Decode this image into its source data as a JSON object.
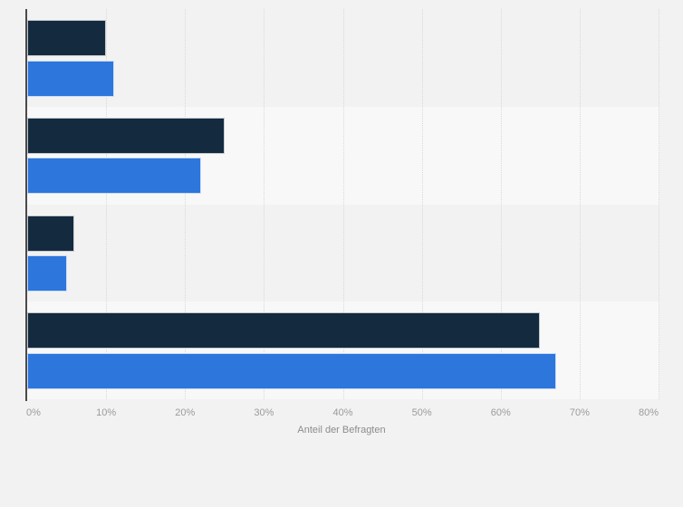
{
  "chart_data": {
    "type": "bar",
    "orientation": "horizontal",
    "title": "",
    "categories": [
      "group-1",
      "group-2",
      "group-3",
      "group-4"
    ],
    "category_labels_visible": false,
    "series": [
      {
        "name": "dark-navy",
        "color": "#142a3f",
        "values": [
          10,
          25,
          6,
          65
        ]
      },
      {
        "name": "blue",
        "color": "#2c76dc",
        "values": [
          11,
          22,
          5,
          67
        ]
      }
    ],
    "xlabel": "Anteil der Befragten",
    "ylabel": "",
    "xlim": [
      0,
      80
    ],
    "tick_step": 10,
    "x_tick_labels": [
      "0%",
      "10%",
      "20%",
      "30%",
      "40%",
      "50%",
      "60%",
      "70%",
      "80%"
    ],
    "grid": "vertical-dotted",
    "legend_position": "none"
  },
  "styles": {
    "page_background": "#f2f2f2",
    "alternate_band_color": "#f8f8f8",
    "gridline_color": "#d9d9d9",
    "axis_line_color": "#4a4a4a",
    "tick_label_color": "#9b9b9b",
    "axis_title_color": "#8c8c8c",
    "bar_border_color": "#ffffff"
  }
}
